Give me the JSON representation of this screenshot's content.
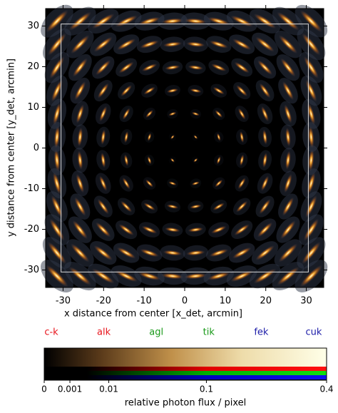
{
  "chart_data": {
    "type": "psf-map",
    "x_label": "x distance from center  [x_det, arcmin]",
    "y_label": "y distance from center  [y_det, arcmin]",
    "xlim": [
      -34.3,
      34.3
    ],
    "ylim": [
      -34.3,
      34.3
    ],
    "xticks": [
      -30,
      -20,
      -10,
      0,
      10,
      20,
      30
    ],
    "yticks": [
      -30,
      -20,
      -10,
      0,
      10,
      20,
      30
    ],
    "field_limits": [
      -30.5,
      30.5
    ],
    "psf_positions": [
      -31.5,
      -25.8,
      -20.1,
      -14.4,
      -8.7,
      -3,
      2.7,
      8.4,
      14.1,
      19.8,
      25.5,
      31.2
    ],
    "energy_bands": [
      {
        "name": "c-k",
        "color": "#e8141c"
      },
      {
        "name": "alk",
        "color": "#e8141c"
      },
      {
        "name": "agl",
        "color": "#1a9a1a"
      },
      {
        "name": "tik",
        "color": "#1a9a1a"
      },
      {
        "name": "fek",
        "color": "#1c1ca8"
      },
      {
        "name": "cuk",
        "color": "#1c1ca8"
      }
    ],
    "colorbar": {
      "label": "relative photon flux / pixel",
      "lim": [
        0,
        0.4
      ],
      "ticks": [
        0,
        0.001,
        0.01,
        0.1,
        0.4
      ]
    }
  }
}
